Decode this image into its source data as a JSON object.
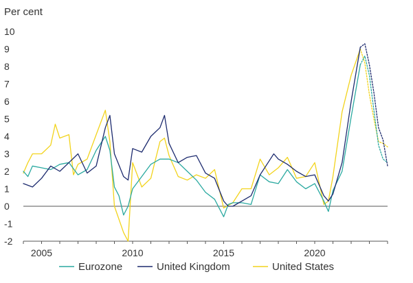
{
  "chart_data": {
    "type": "line",
    "unit_label": "Per cent",
    "xlim": [
      2004.0,
      2024.0
    ],
    "ylim": [
      -2,
      10
    ],
    "y_ticks": [
      "-2",
      "-1",
      "0",
      "1",
      "2",
      "3",
      "4",
      "5",
      "6",
      "7",
      "8",
      "9",
      "10"
    ],
    "x_ticks": [
      "2005",
      "2010",
      "2015",
      "2020"
    ],
    "grid": false,
    "zero_line": true,
    "legend_position": "bottom",
    "series": [
      {
        "name": "Eurozone",
        "color": "#2aa9a0",
        "x": [
          2004.0,
          2004.25,
          2004.5,
          2005.0,
          2005.5,
          2006.0,
          2006.5,
          2007.0,
          2007.5,
          2008.0,
          2008.5,
          2008.75,
          2009.0,
          2009.25,
          2009.5,
          2009.75,
          2010.0,
          2010.5,
          2011.0,
          2011.5,
          2012.0,
          2012.5,
          2013.0,
          2013.5,
          2014.0,
          2014.5,
          2015.0,
          2015.25,
          2015.5,
          2016.0,
          2016.5,
          2017.0,
          2017.5,
          2018.0,
          2018.5,
          2019.0,
          2019.5,
          2020.0,
          2020.5,
          2020.75,
          2021.0,
          2021.5,
          2022.0,
          2022.5
        ],
        "y": [
          2.0,
          1.7,
          2.3,
          2.2,
          2.1,
          2.4,
          2.5,
          1.8,
          2.1,
          3.2,
          4.0,
          3.2,
          1.1,
          0.6,
          -0.5,
          0.0,
          1.0,
          1.7,
          2.4,
          2.7,
          2.7,
          2.5,
          2.0,
          1.5,
          0.8,
          0.4,
          -0.6,
          0.1,
          0.2,
          0.2,
          0.1,
          1.8,
          1.4,
          1.3,
          2.1,
          1.4,
          1.0,
          1.3,
          0.3,
          -0.3,
          0.9,
          2.0,
          5.1,
          8.1
        ]
      },
      {
        "name": "Eurozone",
        "color": "#2aa9a0",
        "dashed": true,
        "x": [
          2022.5,
          2022.75,
          2023.0,
          2023.25,
          2023.5,
          2023.75,
          2024.0
        ],
        "y": [
          8.1,
          8.6,
          7.5,
          5.5,
          3.5,
          2.7,
          2.5
        ]
      },
      {
        "name": "United Kingdom",
        "color": "#1c2a6e",
        "x": [
          2004.0,
          2004.5,
          2005.0,
          2005.5,
          2006.0,
          2006.5,
          2007.0,
          2007.5,
          2008.0,
          2008.5,
          2008.75,
          2009.0,
          2009.5,
          2009.75,
          2010.0,
          2010.5,
          2011.0,
          2011.5,
          2011.75,
          2012.0,
          2012.5,
          2013.0,
          2013.5,
          2014.0,
          2014.5,
          2015.0,
          2015.25,
          2015.5,
          2016.0,
          2016.5,
          2017.0,
          2017.5,
          2017.75,
          2018.0,
          2018.5,
          2019.0,
          2019.5,
          2020.0,
          2020.5,
          2020.75,
          2021.0,
          2021.5,
          2022.0,
          2022.5
        ],
        "y": [
          1.3,
          1.1,
          1.6,
          2.3,
          2.0,
          2.5,
          3.0,
          1.9,
          2.3,
          4.5,
          5.2,
          3.0,
          1.7,
          1.5,
          3.3,
          3.1,
          4.0,
          4.5,
          5.2,
          3.6,
          2.5,
          2.8,
          2.9,
          1.9,
          1.6,
          0.3,
          0.0,
          0.0,
          0.3,
          0.6,
          1.8,
          2.6,
          3.0,
          2.7,
          2.4,
          2.0,
          1.7,
          1.8,
          0.6,
          0.3,
          0.7,
          2.5,
          6.0,
          9.1
        ]
      },
      {
        "name": "United Kingdom",
        "color": "#1c2a6e",
        "dashed": true,
        "x": [
          2022.5,
          2022.75,
          2023.0,
          2023.25,
          2023.5,
          2023.75,
          2024.0
        ],
        "y": [
          9.1,
          9.3,
          8.1,
          6.5,
          4.5,
          3.8,
          2.3
        ]
      },
      {
        "name": "United States",
        "color": "#f2d31b",
        "x": [
          2004.0,
          2004.25,
          2004.5,
          2005.0,
          2005.5,
          2005.75,
          2006.0,
          2006.5,
          2006.75,
          2007.0,
          2007.5,
          2008.0,
          2008.5,
          2008.75,
          2009.0,
          2009.5,
          2009.75,
          2010.0,
          2010.5,
          2011.0,
          2011.5,
          2011.75,
          2012.0,
          2012.5,
          2013.0,
          2013.5,
          2014.0,
          2014.5,
          2015.0,
          2015.5,
          2016.0,
          2016.5,
          2017.0,
          2017.5,
          2018.0,
          2018.5,
          2019.0,
          2019.5,
          2020.0,
          2020.5,
          2020.75,
          2021.0,
          2021.5,
          2022.0,
          2022.5
        ],
        "y": [
          1.9,
          2.5,
          3.0,
          3.0,
          3.5,
          4.7,
          3.9,
          4.1,
          1.8,
          2.4,
          2.7,
          4.1,
          5.5,
          3.7,
          0.0,
          -1.5,
          -2.0,
          2.5,
          1.1,
          1.6,
          3.7,
          3.9,
          2.9,
          1.7,
          1.5,
          1.8,
          1.6,
          2.1,
          -0.1,
          0.2,
          1.0,
          1.0,
          2.7,
          1.8,
          2.2,
          2.8,
          1.6,
          1.7,
          2.5,
          0.1,
          0.3,
          1.7,
          5.4,
          7.5,
          9.0
        ]
      },
      {
        "name": "United States",
        "color": "#f2d31b",
        "dashed": true,
        "x": [
          2022.5,
          2022.75,
          2023.0,
          2023.25,
          2023.5,
          2023.75,
          2024.0
        ],
        "y": [
          9.0,
          8.2,
          6.4,
          5.0,
          3.7,
          3.6,
          3.4
        ]
      }
    ],
    "legend": [
      {
        "label": "Eurozone",
        "color": "#2aa9a0"
      },
      {
        "label": "United Kingdom",
        "color": "#1c2a6e"
      },
      {
        "label": "United States",
        "color": "#f2d31b"
      }
    ]
  }
}
